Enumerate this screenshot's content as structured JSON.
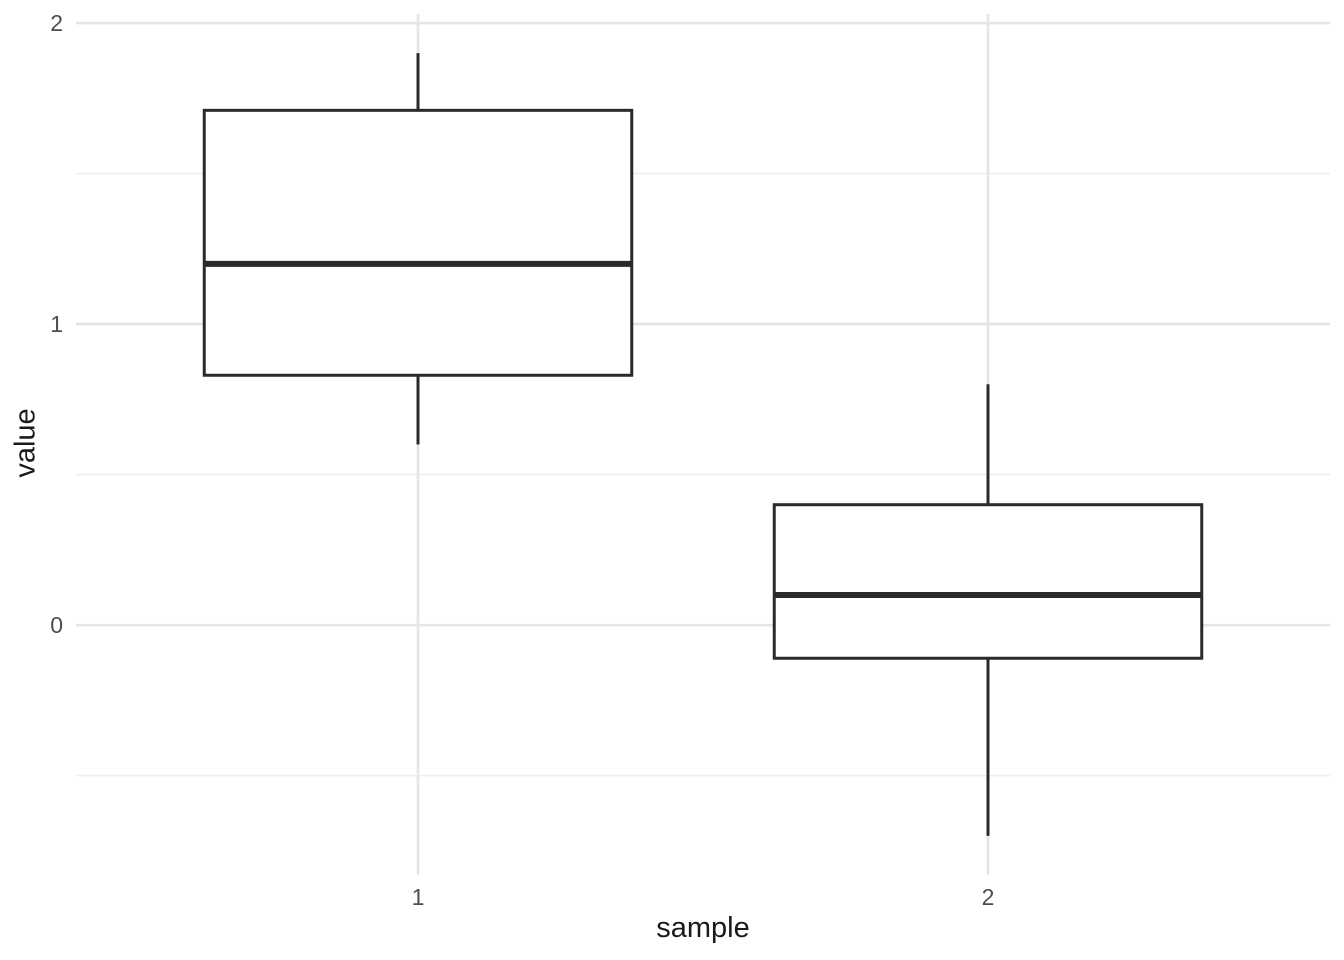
{
  "figure": {
    "background": "#ffffff"
  },
  "chart_data": {
    "type": "boxplot",
    "title": "",
    "xlabel": "sample",
    "ylabel": "value",
    "categories": [
      "1",
      "2"
    ],
    "series": [
      {
        "category": "1",
        "lower_whisker": 0.6,
        "q1": 0.83,
        "median": 1.2,
        "q3": 1.71,
        "upper_whisker": 1.9,
        "outliers": []
      },
      {
        "category": "2",
        "lower_whisker": -0.7,
        "q1": -0.11,
        "median": 0.1,
        "q3": 0.4,
        "upper_whisker": 0.8,
        "outliers": []
      }
    ],
    "y_major_ticks": [
      "0",
      "1",
      "2"
    ],
    "y_major_values": [
      0,
      1,
      2
    ],
    "y_minor_values": [
      -0.5,
      0.5,
      1.5
    ],
    "ylim": [
      -0.83,
      2.03
    ],
    "xlim": [
      0.4,
      2.6
    ],
    "box_width_fraction": 0.75,
    "grid": "horizontal major+minor, vertical major at categories",
    "legend": "none",
    "style": {
      "box_stroke": "#2a2a2a",
      "box_fill": "#ffffff",
      "grid_major_color": "#e5e5e5",
      "grid_minor_color": "#efefef",
      "tick_label_color": "#4d4d4d",
      "axis_title_color": "#1a1a1a"
    }
  }
}
